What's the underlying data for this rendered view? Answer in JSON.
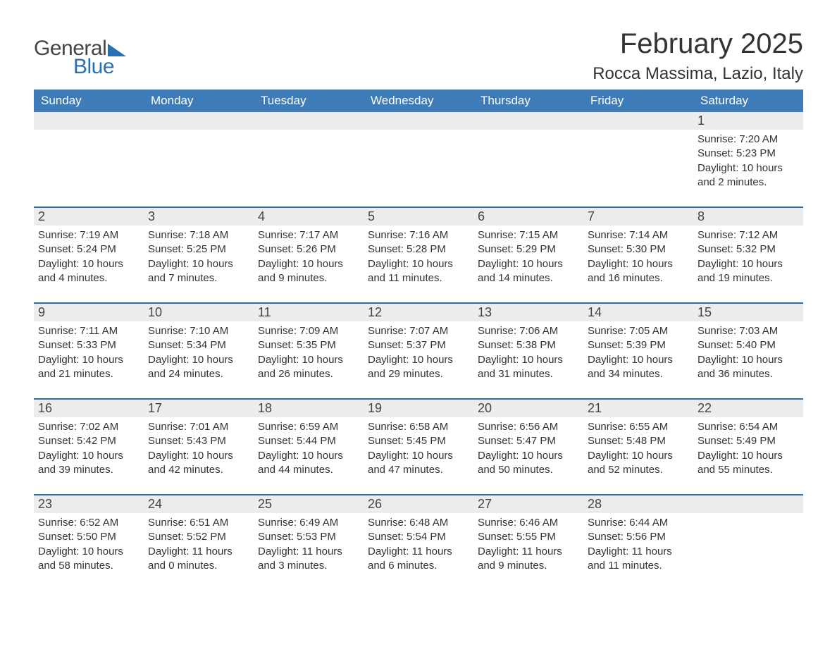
{
  "logo": {
    "text1": "General",
    "text2": "Blue"
  },
  "title": "February 2025",
  "location": "Rocca Massima, Lazio, Italy",
  "colors": {
    "header_bg": "#3d7cb9",
    "accent": "#2b6fb3",
    "daynum_bg": "#ececec",
    "text": "#333333",
    "background": "#ffffff"
  },
  "labels": {
    "sunrise": "Sunrise:",
    "sunset": "Sunset:",
    "daylight": "Daylight:"
  },
  "dow": [
    "Sunday",
    "Monday",
    "Tuesday",
    "Wednesday",
    "Thursday",
    "Friday",
    "Saturday"
  ],
  "weeks": [
    [
      null,
      null,
      null,
      null,
      null,
      null,
      {
        "d": "1",
        "sr": "7:20 AM",
        "ss": "5:23 PM",
        "dl": "10 hours and 2 minutes."
      }
    ],
    [
      {
        "d": "2",
        "sr": "7:19 AM",
        "ss": "5:24 PM",
        "dl": "10 hours and 4 minutes."
      },
      {
        "d": "3",
        "sr": "7:18 AM",
        "ss": "5:25 PM",
        "dl": "10 hours and 7 minutes."
      },
      {
        "d": "4",
        "sr": "7:17 AM",
        "ss": "5:26 PM",
        "dl": "10 hours and 9 minutes."
      },
      {
        "d": "5",
        "sr": "7:16 AM",
        "ss": "5:28 PM",
        "dl": "10 hours and 11 minutes."
      },
      {
        "d": "6",
        "sr": "7:15 AM",
        "ss": "5:29 PM",
        "dl": "10 hours and 14 minutes."
      },
      {
        "d": "7",
        "sr": "7:14 AM",
        "ss": "5:30 PM",
        "dl": "10 hours and 16 minutes."
      },
      {
        "d": "8",
        "sr": "7:12 AM",
        "ss": "5:32 PM",
        "dl": "10 hours and 19 minutes."
      }
    ],
    [
      {
        "d": "9",
        "sr": "7:11 AM",
        "ss": "5:33 PM",
        "dl": "10 hours and 21 minutes."
      },
      {
        "d": "10",
        "sr": "7:10 AM",
        "ss": "5:34 PM",
        "dl": "10 hours and 24 minutes."
      },
      {
        "d": "11",
        "sr": "7:09 AM",
        "ss": "5:35 PM",
        "dl": "10 hours and 26 minutes."
      },
      {
        "d": "12",
        "sr": "7:07 AM",
        "ss": "5:37 PM",
        "dl": "10 hours and 29 minutes."
      },
      {
        "d": "13",
        "sr": "7:06 AM",
        "ss": "5:38 PM",
        "dl": "10 hours and 31 minutes."
      },
      {
        "d": "14",
        "sr": "7:05 AM",
        "ss": "5:39 PM",
        "dl": "10 hours and 34 minutes."
      },
      {
        "d": "15",
        "sr": "7:03 AM",
        "ss": "5:40 PM",
        "dl": "10 hours and 36 minutes."
      }
    ],
    [
      {
        "d": "16",
        "sr": "7:02 AM",
        "ss": "5:42 PM",
        "dl": "10 hours and 39 minutes."
      },
      {
        "d": "17",
        "sr": "7:01 AM",
        "ss": "5:43 PM",
        "dl": "10 hours and 42 minutes."
      },
      {
        "d": "18",
        "sr": "6:59 AM",
        "ss": "5:44 PM",
        "dl": "10 hours and 44 minutes."
      },
      {
        "d": "19",
        "sr": "6:58 AM",
        "ss": "5:45 PM",
        "dl": "10 hours and 47 minutes."
      },
      {
        "d": "20",
        "sr": "6:56 AM",
        "ss": "5:47 PM",
        "dl": "10 hours and 50 minutes."
      },
      {
        "d": "21",
        "sr": "6:55 AM",
        "ss": "5:48 PM",
        "dl": "10 hours and 52 minutes."
      },
      {
        "d": "22",
        "sr": "6:54 AM",
        "ss": "5:49 PM",
        "dl": "10 hours and 55 minutes."
      }
    ],
    [
      {
        "d": "23",
        "sr": "6:52 AM",
        "ss": "5:50 PM",
        "dl": "10 hours and 58 minutes."
      },
      {
        "d": "24",
        "sr": "6:51 AM",
        "ss": "5:52 PM",
        "dl": "11 hours and 0 minutes."
      },
      {
        "d": "25",
        "sr": "6:49 AM",
        "ss": "5:53 PM",
        "dl": "11 hours and 3 minutes."
      },
      {
        "d": "26",
        "sr": "6:48 AM",
        "ss": "5:54 PM",
        "dl": "11 hours and 6 minutes."
      },
      {
        "d": "27",
        "sr": "6:46 AM",
        "ss": "5:55 PM",
        "dl": "11 hours and 9 minutes."
      },
      {
        "d": "28",
        "sr": "6:44 AM",
        "ss": "5:56 PM",
        "dl": "11 hours and 11 minutes."
      },
      null
    ]
  ]
}
